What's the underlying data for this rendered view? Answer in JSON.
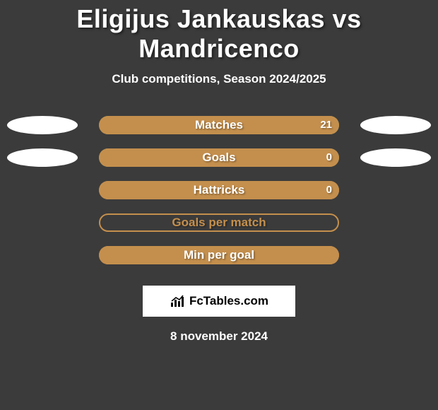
{
  "title": "Eligijus Jankauskas vs Mandricenco",
  "subtitle": "Club competitions, Season 2024/2025",
  "date": "8 november 2024",
  "brand": "FcTables.com",
  "colors": {
    "background": "#3b3b3b",
    "text": "#ffffff",
    "value_text": "#ffffff",
    "ellipse": "#ffffff",
    "brand_box": "#ffffff",
    "brand_text": "#000000",
    "title_fontsize": 36,
    "subtitle_fontsize": 17,
    "row_label_fontsize": 17
  },
  "rows": [
    {
      "label": "Matches",
      "value": "21",
      "show_ellipses": true,
      "bar_bg": "#7fa858",
      "fill_color": "#c48f4d",
      "fill_pct": 100,
      "label_color": "#ffffff"
    },
    {
      "label": "Goals",
      "value": "0",
      "show_ellipses": true,
      "bar_bg": "#7fa858",
      "fill_color": "#c48f4d",
      "fill_pct": 100,
      "label_color": "#ffffff"
    },
    {
      "label": "Hattricks",
      "value": "0",
      "show_ellipses": false,
      "bar_bg": "#c48f4d",
      "fill_color": "#c48f4d",
      "fill_pct": 100,
      "label_color": "#ffffff"
    },
    {
      "label": "Goals per match",
      "value": "",
      "show_ellipses": false,
      "bar_bg": "#3b3b3b",
      "fill_color": "#3b3b3b",
      "fill_pct": 0,
      "label_color": "#c48f4d",
      "border": "#c48f4d"
    },
    {
      "label": "Min per goal",
      "value": "",
      "show_ellipses": false,
      "bar_bg": "#c48f4d",
      "fill_color": "#c48f4d",
      "fill_pct": 100,
      "label_color": "#ffffff"
    }
  ]
}
